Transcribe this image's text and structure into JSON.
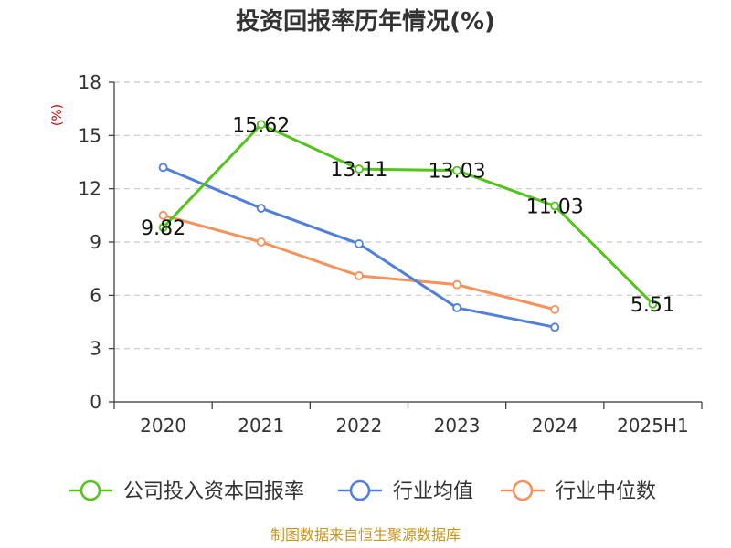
{
  "chart_data": {
    "type": "line",
    "title": "投资回报率历年情况(%)",
    "ylabel": "(%)",
    "categories": [
      "2020",
      "2021",
      "2022",
      "2023",
      "2024",
      "2025H1"
    ],
    "yticks": [
      "0",
      "3",
      "6",
      "9",
      "12",
      "15",
      "18"
    ],
    "ylim": [
      0,
      18
    ],
    "grid": "horizontal-dashed",
    "legend_position": "bottom",
    "series": [
      {
        "name": "公司投入资本回报率",
        "color": "#52c41a",
        "values": [
          9.82,
          15.62,
          13.11,
          13.03,
          11.03,
          5.51
        ],
        "labels": [
          "9.82",
          "15.62",
          "13.11",
          "13.03",
          "11.03",
          "5.51"
        ]
      },
      {
        "name": "行业均值",
        "color": "#4f7fdc",
        "values": [
          13.2,
          10.9,
          8.9,
          5.3,
          4.2,
          null
        ]
      },
      {
        "name": "行业中位数",
        "color": "#f5915a",
        "values": [
          10.5,
          9.0,
          7.1,
          6.6,
          5.2,
          null
        ]
      }
    ]
  },
  "footer": {
    "source": "制图数据来自恒生聚源数据库"
  }
}
